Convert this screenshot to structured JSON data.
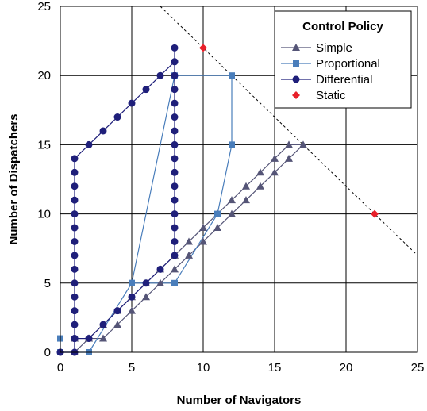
{
  "chart_data": {
    "type": "line",
    "title": "",
    "xlabel": "Number of Navigators",
    "ylabel": "Number of Dispatchers",
    "xlim": [
      0,
      25
    ],
    "ylim": [
      0,
      25
    ],
    "xticks": [
      0,
      5,
      10,
      15,
      20,
      25
    ],
    "yticks": [
      0,
      5,
      10,
      15,
      20,
      25
    ],
    "grid": true,
    "legend": {
      "title": "Control Policy",
      "placement": "top-right"
    },
    "series": [
      {
        "name": "Simple",
        "color": "#555577",
        "marker": "triangle",
        "points": [
          [
            1,
            0
          ],
          [
            2,
            1
          ],
          [
            3,
            1
          ],
          [
            4,
            2
          ],
          [
            5,
            3
          ],
          [
            6,
            4
          ],
          [
            7,
            5
          ],
          [
            8,
            6
          ],
          [
            9,
            7
          ],
          [
            10,
            8
          ],
          [
            11,
            9
          ],
          [
            12,
            10
          ],
          [
            13,
            11
          ],
          [
            14,
            12
          ],
          [
            15,
            13
          ],
          [
            16,
            14
          ],
          [
            17,
            15
          ],
          [
            16,
            15
          ],
          [
            15,
            14
          ],
          [
            14,
            13
          ],
          [
            13,
            12
          ],
          [
            12,
            11
          ],
          [
            11,
            10
          ],
          [
            10,
            9
          ],
          [
            9,
            8
          ],
          [
            8,
            7
          ],
          [
            7,
            6
          ],
          [
            6,
            5
          ],
          [
            5,
            4
          ],
          [
            4,
            3
          ],
          [
            3,
            2
          ],
          [
            2,
            1
          ],
          [
            1,
            1
          ],
          [
            1,
            0
          ]
        ]
      },
      {
        "name": "Proportional",
        "color": "#4a7ebb",
        "marker": "square",
        "points": [
          [
            0,
            1
          ],
          [
            0,
            0
          ],
          [
            2,
            0
          ],
          [
            5,
            5
          ],
          [
            8,
            20
          ],
          [
            12,
            20
          ],
          [
            12,
            15
          ],
          [
            11,
            10
          ],
          [
            8,
            5
          ],
          [
            5,
            5
          ],
          [
            2,
            0
          ]
        ]
      },
      {
        "name": "Differential",
        "color": "#1f1f7a",
        "marker": "circle",
        "points": [
          [
            0,
            0
          ],
          [
            1,
            0
          ],
          [
            1,
            1
          ],
          [
            1,
            2
          ],
          [
            1,
            3
          ],
          [
            1,
            4
          ],
          [
            1,
            5
          ],
          [
            1,
            6
          ],
          [
            1,
            7
          ],
          [
            1,
            8
          ],
          [
            1,
            9
          ],
          [
            1,
            10
          ],
          [
            1,
            11
          ],
          [
            1,
            12
          ],
          [
            1,
            13
          ],
          [
            1,
            14
          ],
          [
            2,
            15
          ],
          [
            3,
            16
          ],
          [
            4,
            17
          ],
          [
            5,
            18
          ],
          [
            6,
            19
          ],
          [
            7,
            20
          ],
          [
            8,
            21
          ],
          [
            8,
            22
          ],
          [
            8,
            21
          ],
          [
            8,
            20
          ],
          [
            8,
            19
          ],
          [
            8,
            18
          ],
          [
            8,
            17
          ],
          [
            8,
            16
          ],
          [
            8,
            15
          ],
          [
            8,
            14
          ],
          [
            8,
            13
          ],
          [
            8,
            12
          ],
          [
            8,
            11
          ],
          [
            8,
            10
          ],
          [
            8,
            9
          ],
          [
            8,
            8
          ],
          [
            8,
            7
          ],
          [
            7,
            6
          ],
          [
            6,
            5
          ],
          [
            5,
            4
          ],
          [
            4,
            3
          ],
          [
            3,
            2
          ],
          [
            2,
            1
          ],
          [
            1,
            1
          ],
          [
            1,
            0
          ],
          [
            0,
            0
          ]
        ]
      },
      {
        "name": "Static",
        "color": "#e8202a",
        "marker": "diamond",
        "points": [
          [
            10,
            22
          ],
          [
            22,
            10
          ]
        ]
      }
    ],
    "reference_line": {
      "style": "dashed",
      "color": "#000000",
      "points": [
        [
          7,
          25
        ],
        [
          25,
          7
        ]
      ]
    }
  }
}
